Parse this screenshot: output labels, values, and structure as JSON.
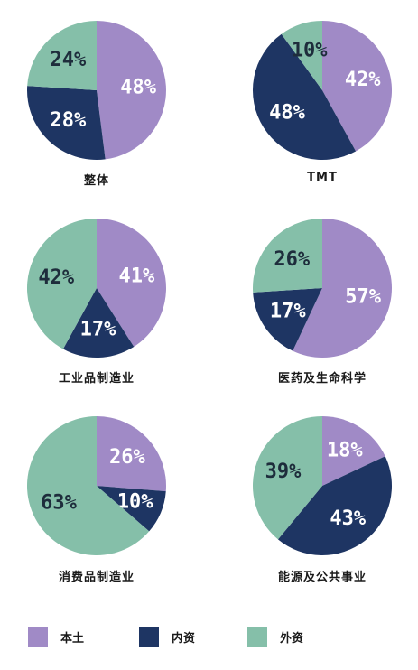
{
  "colors": {
    "local": "#a08ac6",
    "foreign_owned": "#1e3563",
    "foreign": "#85bfa9",
    "label_dark": "#1e2d3c",
    "label_light": "#ffffff"
  },
  "legend": [
    {
      "key": "local",
      "label": "本土"
    },
    {
      "key": "foreign_owned",
      "label": "内资"
    },
    {
      "key": "foreign",
      "label": "外资"
    }
  ],
  "chart_data": [
    {
      "type": "pie",
      "title": "整体",
      "series": [
        {
          "name": "本土",
          "value": 48,
          "label": "48%"
        },
        {
          "name": "内资",
          "value": 28,
          "label": "28%"
        },
        {
          "name": "外资",
          "value": 24,
          "label": "24%"
        }
      ]
    },
    {
      "type": "pie",
      "title": "TMT",
      "series": [
        {
          "name": "本土",
          "value": 42,
          "label": "42%"
        },
        {
          "name": "内资",
          "value": 48,
          "label": "48%"
        },
        {
          "name": "外资",
          "value": 10,
          "label": "10%"
        }
      ]
    },
    {
      "type": "pie",
      "title": "工业品制造业",
      "series": [
        {
          "name": "本土",
          "value": 41,
          "label": "41%"
        },
        {
          "name": "内资",
          "value": 17,
          "label": "17%"
        },
        {
          "name": "外资",
          "value": 42,
          "label": "42%"
        }
      ]
    },
    {
      "type": "pie",
      "title": "医药及生命科学",
      "series": [
        {
          "name": "本土",
          "value": 57,
          "label": "57%"
        },
        {
          "name": "内资",
          "value": 17,
          "label": "17%"
        },
        {
          "name": "外资",
          "value": 26,
          "label": "26%"
        }
      ]
    },
    {
      "type": "pie",
      "title": "消费品制造业",
      "series": [
        {
          "name": "本土",
          "value": 26,
          "label": "26%"
        },
        {
          "name": "内资",
          "value": 10,
          "label": "10%"
        },
        {
          "name": "外资",
          "value": 63,
          "label": "63%"
        }
      ]
    },
    {
      "type": "pie",
      "title": "能源及公共事业",
      "series": [
        {
          "name": "本土",
          "value": 18,
          "label": "18%"
        },
        {
          "name": "内资",
          "value": 43,
          "label": "43%"
        },
        {
          "name": "外资",
          "value": 39,
          "label": "39%"
        }
      ]
    }
  ]
}
